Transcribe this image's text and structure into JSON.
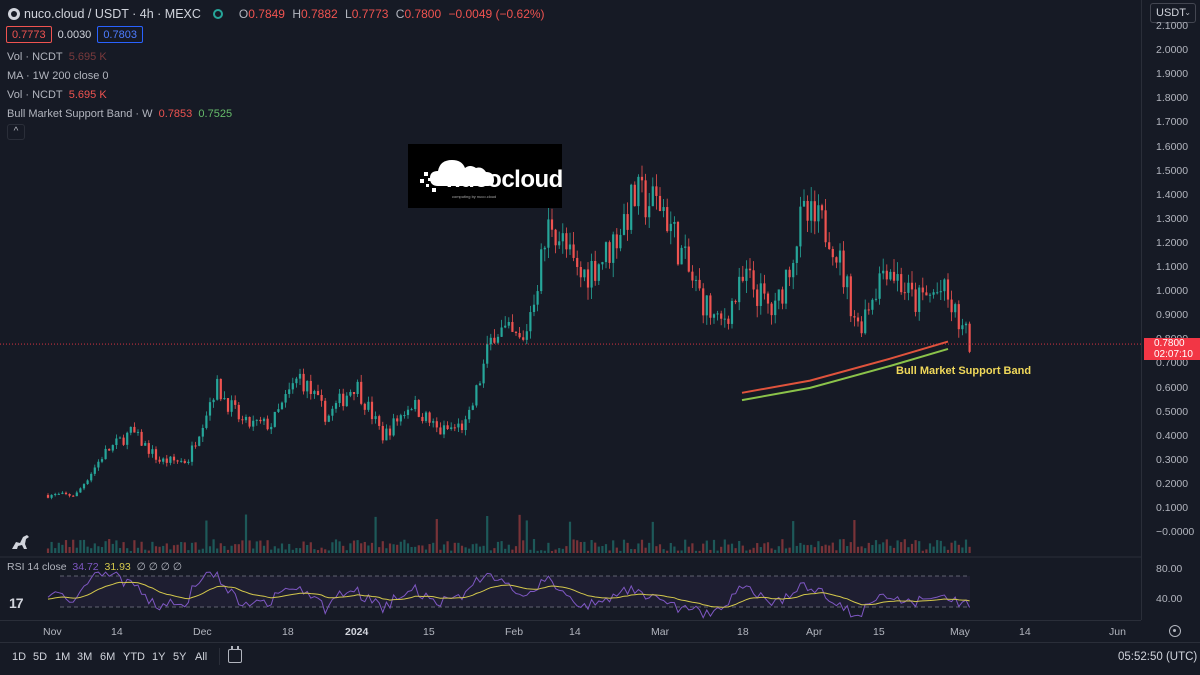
{
  "header": {
    "title": "nuco.cloud / USDT · 4h · MEXC",
    "ohlc": [
      {
        "label": "O",
        "value": "0.7849"
      },
      {
        "label": "H",
        "value": "0.7882"
      },
      {
        "label": "L",
        "value": "0.7773"
      },
      {
        "label": "C",
        "value": "0.7800"
      },
      {
        "label": "",
        "value": "−0.0049 (−0.62%)"
      }
    ]
  },
  "quote": {
    "bid": "0.7773",
    "spread": "0.0030",
    "ask": "0.7803"
  },
  "indicators": [
    {
      "name": "Vol · NCDT",
      "value": "5.695 K",
      "value2": ""
    },
    {
      "name": "MA · 1W 200 close 0",
      "value": "",
      "value2": ""
    },
    {
      "name": "Vol · NCDT",
      "value": "5.695 K",
      "value2": ""
    },
    {
      "name": "Bull Market Support Band · W",
      "value": "0.7853",
      "value2": "0.7525"
    }
  ],
  "collapse_label": "^",
  "logo": {
    "text": "nucocloud",
    "tagline": "computing by nuco.cloud"
  },
  "currency_selector": "USDT",
  "price_axis": [
    "2.1000",
    "2.0000",
    "1.9000",
    "1.8000",
    "1.7000",
    "1.6000",
    "1.5000",
    "1.4000",
    "1.3000",
    "1.2000",
    "1.1000",
    "1.0000",
    "0.9000",
    "0.8000",
    "0.7000",
    "0.6000",
    "0.5000",
    "0.4000",
    "0.3000",
    "0.2000",
    "0.1000",
    "−0.0000"
  ],
  "current_price": {
    "price": "0.7800",
    "countdown": "02:07:10"
  },
  "rsi": {
    "label": "RSI 14 close",
    "value1": "34.72",
    "value2": "31.93",
    "zeros": "∅ ∅ ∅ ∅",
    "axis": [
      "80.00",
      "40.00"
    ]
  },
  "time_axis": [
    {
      "label": "Nov",
      "bold": false
    },
    {
      "label": "14",
      "bold": false
    },
    {
      "label": "Dec",
      "bold": false
    },
    {
      "label": "18",
      "bold": false
    },
    {
      "label": "2024",
      "bold": true
    },
    {
      "label": "15",
      "bold": false
    },
    {
      "label": "Feb",
      "bold": false
    },
    {
      "label": "14",
      "bold": false
    },
    {
      "label": "Mar",
      "bold": false
    },
    {
      "label": "18",
      "bold": false
    },
    {
      "label": "Apr",
      "bold": false
    },
    {
      "label": "15",
      "bold": false
    },
    {
      "label": "May",
      "bold": false
    },
    {
      "label": "14",
      "bold": false
    },
    {
      "label": "Jun",
      "bold": false
    }
  ],
  "timeframes": [
    "1D",
    "5D",
    "1M",
    "3M",
    "6M",
    "YTD",
    "1Y",
    "5Y",
    "All"
  ],
  "clock": "05:52:50 (UTC)",
  "annotation": "Bull Market Support Band",
  "tv_logo": "17",
  "colors": {
    "background": "#161a25",
    "up": "#26a69a",
    "down": "#ef5350",
    "price_line": "#f23645",
    "rsi": "#7e57c2",
    "rsi_ma": "#d4c84c"
  },
  "chart_data": {
    "type": "candlestick",
    "symbol": "NCDT/USDT",
    "interval": "4h",
    "x_range": [
      "Nov 2023",
      "Jun 2024"
    ],
    "ylim": [
      0,
      2.1
    ],
    "close_path": [
      {
        "x": "Nov 1",
        "y": 0.16
      },
      {
        "x": "Nov 14",
        "y": 0.16
      },
      {
        "x": "Nov 18",
        "y": 0.33
      },
      {
        "x": "Nov 22",
        "y": 0.42
      },
      {
        "x": "Nov 26",
        "y": 0.3
      },
      {
        "x": "Dec 8",
        "y": 0.3
      },
      {
        "x": "Dec 10",
        "y": 0.61
      },
      {
        "x": "Dec 18",
        "y": 0.45
      },
      {
        "x": "Dec 30",
        "y": 0.45
      },
      {
        "x": "Jan 2",
        "y": 0.65
      },
      {
        "x": "Jan 8",
        "y": 0.48
      },
      {
        "x": "Jan 12",
        "y": 0.62
      },
      {
        "x": "Jan 25",
        "y": 0.4
      },
      {
        "x": "Feb 1",
        "y": 0.54
      },
      {
        "x": "Feb 5",
        "y": 0.42
      },
      {
        "x": "Feb 12",
        "y": 0.45
      },
      {
        "x": "Feb 16",
        "y": 0.85
      },
      {
        "x": "Feb 20",
        "y": 0.78
      },
      {
        "x": "Feb 24",
        "y": 1.3
      },
      {
        "x": "Feb 28",
        "y": 1.05
      },
      {
        "x": "Mar 6",
        "y": 1.15
      },
      {
        "x": "Mar 10",
        "y": 1.38
      },
      {
        "x": "Mar 14",
        "y": 1.35
      },
      {
        "x": "Mar 18",
        "y": 1.05
      },
      {
        "x": "Mar 24",
        "y": 0.85
      },
      {
        "x": "Mar 28",
        "y": 1.05
      },
      {
        "x": "Apr 2",
        "y": 0.9
      },
      {
        "x": "Apr 8",
        "y": 1.3
      },
      {
        "x": "Apr 12",
        "y": 1.25
      },
      {
        "x": "Apr 16",
        "y": 0.85
      },
      {
        "x": "Apr 20",
        "y": 1.12
      },
      {
        "x": "Apr 25",
        "y": 0.95
      },
      {
        "x": "Apr 28",
        "y": 1.0
      },
      {
        "x": "May 2",
        "y": 0.78
      }
    ],
    "support_band": [
      {
        "x": "Mar 22",
        "y": 0.57
      },
      {
        "x": "Apr 5",
        "y": 0.62
      },
      {
        "x": "Apr 20",
        "y": 0.71
      },
      {
        "x": "May 1",
        "y": 0.78
      }
    ]
  }
}
